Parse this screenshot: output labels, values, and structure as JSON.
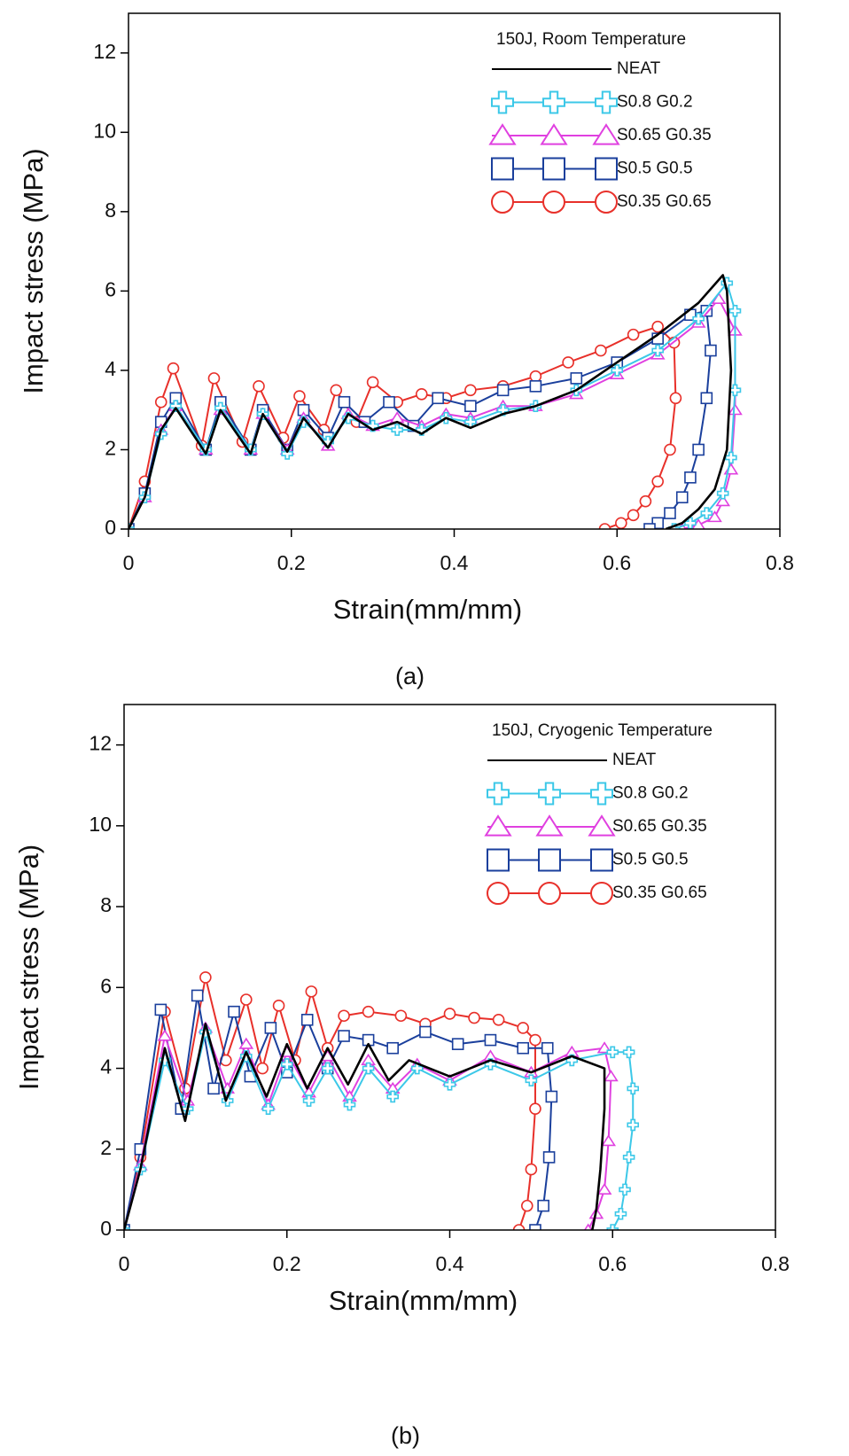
{
  "chart_data": [
    {
      "type": "line",
      "annotation": "150J, Room Temperature",
      "caption": "(a)",
      "xlabel": "Strain(mm/mm)",
      "ylabel": "Impact stress (MPa)",
      "xlim": [
        0,
        0.8
      ],
      "ylim": [
        0,
        13
      ],
      "xticks": [
        0,
        0.2,
        0.4,
        0.6,
        0.8
      ],
      "yticks": [
        0,
        2,
        4,
        6,
        8,
        10,
        12
      ],
      "legend": "upper right",
      "series": [
        {
          "name": "NEAT",
          "color": "#000000",
          "marker": "none",
          "x": [
            0,
            0.02,
            0.04,
            0.058,
            0.095,
            0.113,
            0.15,
            0.165,
            0.195,
            0.215,
            0.245,
            0.27,
            0.3,
            0.33,
            0.36,
            0.39,
            0.42,
            0.46,
            0.5,
            0.55,
            0.6,
            0.65,
            0.7,
            0.73,
            0.735,
            0.74,
            0.735,
            0.72,
            0.7,
            0.68,
            0.66
          ],
          "values": [
            0,
            0.8,
            2.5,
            3.05,
            1.9,
            3.0,
            1.9,
            2.9,
            1.95,
            2.8,
            2.05,
            2.9,
            2.5,
            2.7,
            2.4,
            2.8,
            2.55,
            2.9,
            3.1,
            3.5,
            4.2,
            4.9,
            5.7,
            6.4,
            6.0,
            4.0,
            2.0,
            1.0,
            0.5,
            0.15,
            0.0
          ]
        },
        {
          "name": "S0.8 G0.2",
          "color": "#3cc8e8",
          "marker": "plus",
          "x": [
            0,
            0.02,
            0.04,
            0.058,
            0.095,
            0.113,
            0.15,
            0.165,
            0.195,
            0.215,
            0.245,
            0.27,
            0.3,
            0.33,
            0.36,
            0.39,
            0.42,
            0.46,
            0.5,
            0.55,
            0.6,
            0.65,
            0.7,
            0.735,
            0.745,
            0.745,
            0.74,
            0.73,
            0.71,
            0.69,
            0.67
          ],
          "values": [
            0,
            0.8,
            2.4,
            3.1,
            2.0,
            3.05,
            2.0,
            2.9,
            1.9,
            2.7,
            2.2,
            2.8,
            2.6,
            2.5,
            2.5,
            2.8,
            2.7,
            3.0,
            3.1,
            3.5,
            4.0,
            4.5,
            5.3,
            6.2,
            5.5,
            3.5,
            1.8,
            0.9,
            0.4,
            0.15,
            0.0
          ]
        },
        {
          "name": "S0.65 G0.35",
          "color": "#e040e0",
          "marker": "triangle",
          "x": [
            0,
            0.02,
            0.04,
            0.058,
            0.095,
            0.113,
            0.15,
            0.165,
            0.195,
            0.215,
            0.245,
            0.27,
            0.3,
            0.33,
            0.36,
            0.39,
            0.42,
            0.46,
            0.5,
            0.55,
            0.6,
            0.65,
            0.7,
            0.725,
            0.745,
            0.745,
            0.74,
            0.73,
            0.72,
            0.7,
            0.68
          ],
          "values": [
            0,
            0.8,
            2.5,
            3.1,
            2.0,
            3.0,
            2.0,
            2.9,
            2.0,
            2.8,
            2.1,
            2.9,
            2.6,
            2.8,
            2.6,
            2.9,
            2.8,
            3.1,
            3.1,
            3.4,
            3.9,
            4.4,
            5.2,
            5.8,
            5.0,
            3.0,
            1.5,
            0.7,
            0.3,
            0.1,
            0.0
          ]
        },
        {
          "name": "S0.5 G0.5",
          "color": "#1a3f9c",
          "marker": "square",
          "x": [
            0,
            0.02,
            0.04,
            0.058,
            0.095,
            0.113,
            0.15,
            0.165,
            0.195,
            0.215,
            0.245,
            0.265,
            0.29,
            0.32,
            0.35,
            0.38,
            0.42,
            0.46,
            0.5,
            0.55,
            0.6,
            0.65,
            0.69,
            0.71,
            0.715,
            0.71,
            0.7,
            0.69,
            0.68,
            0.665,
            0.65,
            0.64
          ],
          "values": [
            0,
            0.9,
            2.7,
            3.3,
            2.0,
            3.2,
            2.0,
            3.0,
            2.0,
            3.0,
            2.3,
            3.2,
            2.7,
            3.2,
            2.6,
            3.3,
            3.1,
            3.5,
            3.6,
            3.8,
            4.2,
            4.8,
            5.4,
            5.5,
            4.5,
            3.3,
            2.0,
            1.3,
            0.8,
            0.4,
            0.15,
            0.0
          ]
        },
        {
          "name": "S0.35 G0.65",
          "color": "#e8302a",
          "marker": "circle",
          "x": [
            0,
            0.02,
            0.04,
            0.055,
            0.09,
            0.105,
            0.14,
            0.16,
            0.19,
            0.21,
            0.24,
            0.255,
            0.28,
            0.3,
            0.33,
            0.36,
            0.39,
            0.42,
            0.46,
            0.5,
            0.54,
            0.58,
            0.62,
            0.65,
            0.67,
            0.672,
            0.665,
            0.65,
            0.635,
            0.62,
            0.605,
            0.585
          ],
          "values": [
            0,
            1.2,
            3.2,
            4.05,
            2.1,
            3.8,
            2.2,
            3.6,
            2.3,
            3.35,
            2.5,
            3.5,
            2.7,
            3.7,
            3.2,
            3.4,
            3.3,
            3.5,
            3.6,
            3.85,
            4.2,
            4.5,
            4.9,
            5.1,
            4.7,
            3.3,
            2.0,
            1.2,
            0.7,
            0.35,
            0.15,
            0.0
          ]
        }
      ]
    },
    {
      "type": "line",
      "annotation": "150J, Cryogenic Temperature",
      "caption": "(b)",
      "xlabel": "Strain(mm/mm)",
      "ylabel": "Impact stress (MPa)",
      "xlim": [
        0,
        0.8
      ],
      "ylim": [
        0,
        13
      ],
      "xticks": [
        0,
        0.2,
        0.4,
        0.6,
        0.8
      ],
      "yticks": [
        0,
        2,
        4,
        6,
        8,
        10,
        12
      ],
      "legend": "upper right",
      "series": [
        {
          "name": "NEAT",
          "color": "#000000",
          "marker": "none",
          "x": [
            0,
            0.02,
            0.05,
            0.075,
            0.1,
            0.125,
            0.15,
            0.175,
            0.2,
            0.225,
            0.25,
            0.275,
            0.3,
            0.325,
            0.35,
            0.4,
            0.45,
            0.5,
            0.55,
            0.59,
            0.59,
            0.585,
            0.58,
            0.575
          ],
          "values": [
            0,
            1.5,
            4.5,
            2.7,
            5.1,
            3.2,
            4.4,
            3.3,
            4.6,
            3.5,
            4.5,
            3.6,
            4.6,
            3.7,
            4.2,
            3.8,
            4.2,
            3.9,
            4.3,
            4.0,
            3.0,
            1.5,
            0.5,
            0.0
          ]
        },
        {
          "name": "S0.8 G0.2",
          "color": "#3cc8e8",
          "marker": "plus",
          "x": [
            0,
            0.02,
            0.05,
            0.078,
            0.1,
            0.127,
            0.15,
            0.177,
            0.2,
            0.227,
            0.25,
            0.277,
            0.3,
            0.33,
            0.36,
            0.4,
            0.45,
            0.5,
            0.55,
            0.6,
            0.62,
            0.625,
            0.625,
            0.62,
            0.615,
            0.61,
            0.6
          ],
          "values": [
            0,
            1.5,
            4.2,
            3.0,
            4.9,
            3.2,
            4.3,
            3.0,
            4.1,
            3.2,
            4.0,
            3.1,
            4.0,
            3.3,
            4.0,
            3.6,
            4.1,
            3.7,
            4.2,
            4.4,
            4.4,
            3.5,
            2.6,
            1.8,
            1.0,
            0.4,
            0.0
          ]
        },
        {
          "name": "S0.65 G0.35",
          "color": "#e040e0",
          "marker": "triangle",
          "x": [
            0,
            0.02,
            0.05,
            0.078,
            0.1,
            0.127,
            0.15,
            0.177,
            0.2,
            0.227,
            0.25,
            0.277,
            0.3,
            0.33,
            0.36,
            0.4,
            0.45,
            0.5,
            0.55,
            0.59,
            0.598,
            0.595,
            0.59,
            0.58,
            0.57
          ],
          "values": [
            0,
            1.6,
            4.8,
            3.2,
            5.0,
            3.5,
            4.6,
            3.1,
            4.4,
            3.4,
            4.3,
            3.3,
            4.2,
            3.5,
            4.1,
            3.7,
            4.3,
            3.9,
            4.4,
            4.5,
            3.8,
            2.2,
            1.0,
            0.4,
            0.0
          ]
        },
        {
          "name": "S0.5 G0.5",
          "color": "#1a3f9c",
          "marker": "square",
          "x": [
            0,
            0.02,
            0.045,
            0.07,
            0.09,
            0.11,
            0.135,
            0.155,
            0.18,
            0.2,
            0.225,
            0.25,
            0.27,
            0.3,
            0.33,
            0.37,
            0.41,
            0.45,
            0.49,
            0.52,
            0.525,
            0.522,
            0.515,
            0.505
          ],
          "values": [
            0,
            2.0,
            5.45,
            3.0,
            5.8,
            3.5,
            5.4,
            3.8,
            5.0,
            3.9,
            5.2,
            4.0,
            4.8,
            4.7,
            4.5,
            4.9,
            4.6,
            4.7,
            4.5,
            4.5,
            3.3,
            1.8,
            0.6,
            0.0
          ]
        },
        {
          "name": "S0.35 G0.65",
          "color": "#e8302a",
          "marker": "circle",
          "x": [
            0,
            0.02,
            0.05,
            0.075,
            0.1,
            0.125,
            0.15,
            0.17,
            0.19,
            0.21,
            0.23,
            0.25,
            0.27,
            0.3,
            0.34,
            0.37,
            0.4,
            0.43,
            0.46,
            0.49,
            0.505,
            0.505,
            0.5,
            0.495,
            0.485
          ],
          "values": [
            0,
            1.8,
            5.4,
            3.5,
            6.25,
            4.2,
            5.7,
            4.0,
            5.55,
            4.2,
            5.9,
            4.5,
            5.3,
            5.4,
            5.3,
            5.1,
            5.35,
            5.25,
            5.2,
            5.0,
            4.7,
            3.0,
            1.5,
            0.6,
            0.0
          ]
        }
      ]
    }
  ]
}
